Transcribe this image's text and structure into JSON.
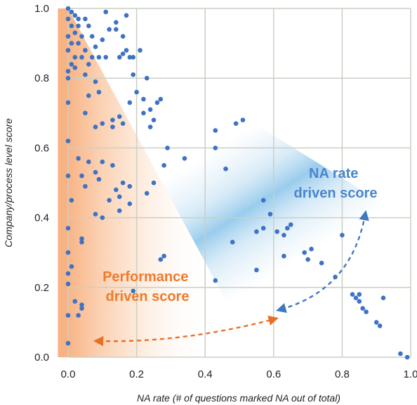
{
  "chart_data": {
    "type": "scatter",
    "xlabel": "NA rate (# of questions marked NA out of total)",
    "ylabel": "Company/process level score",
    "xlim": [
      0,
      1
    ],
    "ylim": [
      0,
      1
    ],
    "x_ticks": [
      "0.0",
      "0.2",
      "0.4",
      "0.6",
      "0.8",
      "1.0"
    ],
    "y_ticks": [
      "0.0",
      "0.2",
      "0.4",
      "0.6",
      "0.8",
      "1.0"
    ],
    "grid": true,
    "colors": {
      "points": "#3d72c4",
      "performance": "#f07a2a",
      "na_rate": "#4a86cc",
      "grid": "#c9d0c4"
    },
    "annotations": {
      "performance": [
        "Performance",
        "driven score"
      ],
      "na_rate": [
        "NA rate",
        "driven score"
      ]
    },
    "points": [
      [
        0.0,
        1.0
      ],
      [
        0.01,
        0.99
      ],
      [
        0.02,
        0.98
      ],
      [
        0.0,
        0.97
      ],
      [
        0.03,
        0.97
      ],
      [
        0.05,
        0.97
      ],
      [
        0.01,
        0.95
      ],
      [
        0.03,
        0.95
      ],
      [
        0.06,
        0.95
      ],
      [
        0.02,
        0.93
      ],
      [
        0.0,
        0.92
      ],
      [
        0.04,
        0.92
      ],
      [
        0.07,
        0.92
      ],
      [
        0.01,
        0.9
      ],
      [
        0.03,
        0.9
      ],
      [
        0.0,
        0.88
      ],
      [
        0.05,
        0.88
      ],
      [
        0.02,
        0.86
      ],
      [
        0.04,
        0.86
      ],
      [
        0.07,
        0.86
      ],
      [
        0.09,
        0.86
      ],
      [
        0.11,
        0.86
      ],
      [
        0.01,
        0.84
      ],
      [
        0.06,
        0.84
      ],
      [
        0.08,
        0.89
      ],
      [
        0.1,
        0.91
      ],
      [
        0.12,
        0.94
      ],
      [
        0.14,
        0.96
      ],
      [
        0.17,
        0.98
      ],
      [
        0.11,
        0.99
      ],
      [
        0.15,
        0.86
      ],
      [
        0.16,
        0.87
      ],
      [
        0.17,
        0.88
      ],
      [
        0.18,
        0.86
      ],
      [
        0.19,
        0.86
      ],
      [
        0.21,
        0.88
      ],
      [
        0.14,
        0.94
      ],
      [
        0.16,
        0.92
      ],
      [
        0.0,
        0.82
      ],
      [
        0.0,
        0.8
      ],
      [
        0.02,
        0.83
      ],
      [
        0.05,
        0.81
      ],
      [
        0.08,
        0.79
      ],
      [
        0.19,
        0.81
      ],
      [
        0.23,
        0.8
      ],
      [
        0.2,
        0.76
      ],
      [
        0.22,
        0.74
      ],
      [
        0.27,
        0.74
      ],
      [
        0.26,
        0.73
      ],
      [
        0.24,
        0.71
      ],
      [
        0.25,
        0.68
      ],
      [
        0.24,
        0.66
      ],
      [
        0.22,
        0.7
      ],
      [
        0.29,
        0.6
      ],
      [
        0.34,
        0.57
      ],
      [
        0.28,
        0.55
      ],
      [
        0.25,
        0.5
      ],
      [
        0.23,
        0.47
      ],
      [
        0.0,
        0.73
      ],
      [
        0.06,
        0.75
      ],
      [
        0.09,
        0.76
      ],
      [
        0.13,
        0.68
      ],
      [
        0.15,
        0.69
      ],
      [
        0.18,
        0.73
      ],
      [
        0.05,
        0.7
      ],
      [
        0.08,
        0.66
      ],
      [
        0.1,
        0.67
      ],
      [
        0.13,
        0.66
      ],
      [
        0.16,
        0.67
      ],
      [
        0.0,
        0.62
      ],
      [
        0.03,
        0.57
      ],
      [
        0.06,
        0.56
      ],
      [
        0.08,
        0.53
      ],
      [
        0.1,
        0.56
      ],
      [
        0.09,
        0.51
      ],
      [
        0.13,
        0.55
      ],
      [
        0.14,
        0.48
      ],
      [
        0.16,
        0.5
      ],
      [
        0.18,
        0.49
      ],
      [
        0.0,
        0.52
      ],
      [
        0.04,
        0.52
      ],
      [
        0.05,
        0.49
      ],
      [
        0.12,
        0.45
      ],
      [
        0.15,
        0.46
      ],
      [
        0.15,
        0.42
      ],
      [
        0.18,
        0.44
      ],
      [
        0.01,
        0.45
      ],
      [
        0.08,
        0.41
      ],
      [
        0.1,
        0.4
      ],
      [
        0.0,
        0.37
      ],
      [
        0.04,
        0.34
      ],
      [
        0.04,
        0.33
      ],
      [
        0.0,
        0.3
      ],
      [
        0.01,
        0.26
      ],
      [
        0.0,
        0.24
      ],
      [
        0.0,
        0.21
      ],
      [
        0.02,
        0.16
      ],
      [
        0.04,
        0.14
      ],
      [
        0.04,
        0.15
      ],
      [
        0.0,
        0.12
      ],
      [
        0.03,
        0.12
      ],
      [
        0.0,
        0.04
      ],
      [
        0.19,
        0.19
      ],
      [
        0.27,
        0.28
      ],
      [
        0.28,
        0.29
      ],
      [
        0.43,
        0.65
      ],
      [
        0.43,
        0.6
      ],
      [
        0.46,
        0.54
      ],
      [
        0.49,
        0.67
      ],
      [
        0.51,
        0.68
      ],
      [
        0.43,
        0.22
      ],
      [
        0.48,
        0.33
      ],
      [
        0.55,
        0.36
      ],
      [
        0.55,
        0.25
      ],
      [
        0.57,
        0.45
      ],
      [
        0.57,
        0.37
      ],
      [
        0.59,
        0.41
      ],
      [
        0.61,
        0.36
      ],
      [
        0.63,
        0.35
      ],
      [
        0.63,
        0.29
      ],
      [
        0.64,
        0.37
      ],
      [
        0.65,
        0.38
      ],
      [
        0.69,
        0.3
      ],
      [
        0.7,
        0.28
      ],
      [
        0.71,
        0.31
      ],
      [
        0.74,
        0.27
      ],
      [
        0.78,
        0.23
      ],
      [
        0.8,
        0.35
      ],
      [
        0.83,
        0.18
      ],
      [
        0.84,
        0.17
      ],
      [
        0.85,
        0.18
      ],
      [
        0.85,
        0.16
      ],
      [
        0.86,
        0.14
      ],
      [
        0.87,
        0.13
      ],
      [
        0.9,
        0.1
      ],
      [
        0.91,
        0.09
      ],
      [
        0.92,
        0.17
      ],
      [
        0.97,
        0.01
      ],
      [
        0.99,
        0.0
      ]
    ]
  }
}
